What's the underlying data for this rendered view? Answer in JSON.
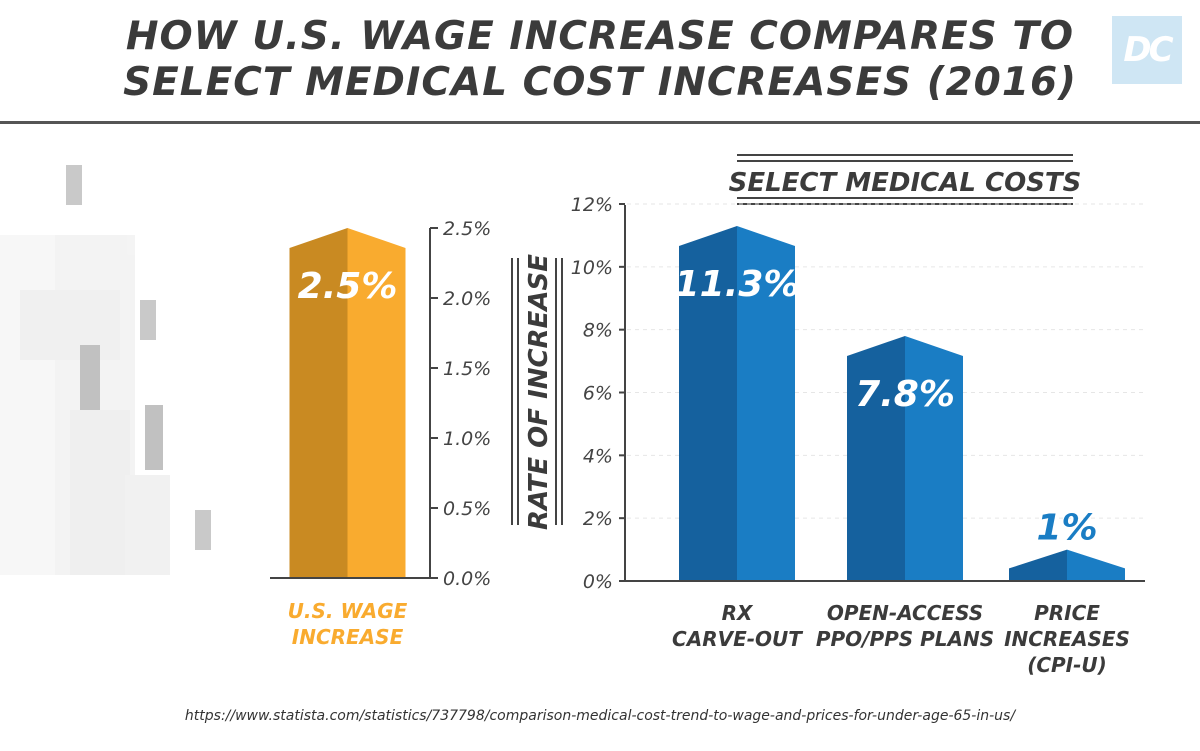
{
  "title_lines": [
    "HOW U.S. WAGE INCREASE COMPARES TO",
    "SELECT MEDICAL COST INCREASES (2016)"
  ],
  "logo_text": "DC",
  "source": "https://www.statista.com/statistics/737798/comparison-medical-cost-trend-to-wage-and-prices-for-under-age-65-in-us/",
  "colors": {
    "wage_light": "#f9ab2f",
    "wage_dark": "#c98a22",
    "medical_light": "#1a7dc4",
    "medical_dark": "#15619e",
    "text": "#3b3b3b"
  },
  "chart_data": [
    {
      "type": "bar",
      "ylim": [
        0,
        2.5
      ],
      "ticks": [
        "2.5%",
        "2.0%",
        "1.5%",
        "1.0%",
        "0.5%",
        "0.0%"
      ],
      "tick_values": [
        2.5,
        2.0,
        1.5,
        1.0,
        0.5,
        0.0
      ],
      "categories": [
        [
          "U.S. WAGE",
          "INCREASE"
        ]
      ],
      "values": [
        2.5
      ],
      "labels": [
        "2.5%"
      ],
      "ylabel": "RATE OF INCREASE"
    },
    {
      "type": "bar",
      "title": "SELECT MEDICAL COSTS",
      "ylim": [
        0,
        12
      ],
      "ticks": [
        "12%",
        "10%",
        "8%",
        "6%",
        "4%",
        "2%",
        "0%"
      ],
      "tick_values": [
        12,
        10,
        8,
        6,
        4,
        2,
        0
      ],
      "categories": [
        [
          "RX",
          "CARVE-OUT"
        ],
        [
          "OPEN-ACCESS",
          "PPO/PPS PLANS"
        ],
        [
          "PRICE",
          "INCREASES",
          "(CPI-U)"
        ]
      ],
      "values": [
        11.3,
        7.8,
        1
      ],
      "labels": [
        "11.3%",
        "7.8%",
        "1%"
      ]
    }
  ]
}
